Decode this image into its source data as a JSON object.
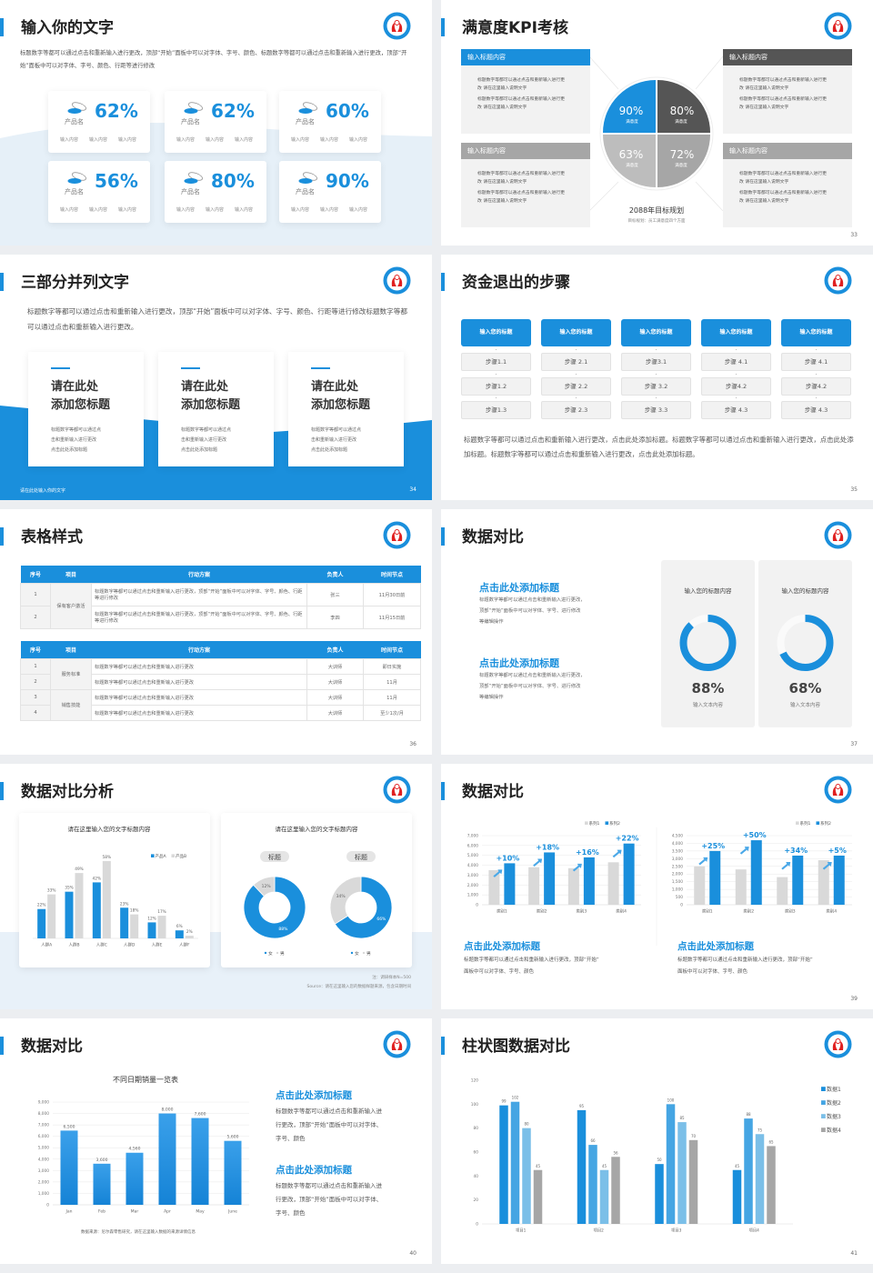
{
  "colors": {
    "accent": "#1a8fdc",
    "dark_gray": "#555555",
    "mid_gray": "#a6a6a6",
    "light_gray": "#d9d9d9",
    "panel": "#f2f2f2"
  },
  "slides": [
    {
      "page": "32",
      "title": "输入你的文字",
      "paragraph": "标题数字等都可以通过点击和重新输入进行更改，顶部“开始”面板中可以对字体、字号、颜色、标题数字等都可以通过点击和重新输入进行更改，顶部“开始”面板中可以对字体、字号、颜色、行距等进行修改",
      "cards": [
        {
          "icon": "pill-dish-icon",
          "value": "62%",
          "label": "产品名",
          "items": [
            "输入内容",
            "输入内容",
            "输入内容"
          ]
        },
        {
          "icon": "pill-dish-icon",
          "value": "62%",
          "label": "产品名",
          "items": [
            "输入内容",
            "输入内容",
            "输入内容"
          ]
        },
        {
          "icon": "pill-dish-icon",
          "value": "60%",
          "label": "产品名",
          "items": [
            "输入内容",
            "输入内容",
            "输入内容"
          ]
        },
        {
          "icon": "pill-dish-icon",
          "value": "56%",
          "label": "产品名",
          "items": [
            "输入内容",
            "输入内容",
            "输入内容"
          ]
        },
        {
          "icon": "pill-dish-icon",
          "value": "80%",
          "label": "产品名",
          "items": [
            "输入内容",
            "输入内容",
            "输入内容"
          ]
        },
        {
          "icon": "pill-dish-icon",
          "value": "90%",
          "label": "产品名",
          "items": [
            "输入内容",
            "输入内容",
            "输入内容"
          ]
        }
      ]
    },
    {
      "page": "33",
      "title": "满意度KPI考核",
      "boxes": [
        {
          "header": "输入标题内容",
          "color": "#1a8fdc",
          "bullets": [
            "标题数字等都可以通过点击和重新输入进行更改 请在这里输入说明文字",
            "标题数字等都可以通过点击和重新输入进行更改 请在这里输入说明文字"
          ]
        },
        {
          "header": "输入标题内容",
          "color": "#555555",
          "bullets": [
            "标题数字等都可以通过点击和重新输入进行更改 请在这里输入说明文字",
            "标题数字等都可以通过点击和重新输入进行更改 请在这里输入说明文字"
          ]
        },
        {
          "header": "输入标题内容",
          "color": "#a6a6a6",
          "bullets": [
            "标题数字等都可以通过点击和重新输入进行更改 请在这里输入说明文字",
            "标题数字等都可以通过点击和重新输入进行更改 请在这里输入说明文字"
          ]
        },
        {
          "header": "输入标题内容",
          "color": "#a6a6a6",
          "bullets": [
            "标题数字等都可以通过点击和重新输入进行更改 请在这里输入说明文字",
            "标题数字等都可以通过点击和重新输入进行更改 请在这里输入说明文字"
          ]
        }
      ],
      "quadrants": [
        {
          "value": "90%",
          "label": "满意度",
          "color": "#1a8fdc"
        },
        {
          "value": "80%",
          "label": "满意度",
          "color": "#555555"
        },
        {
          "value": "63%",
          "label": "满意度",
          "color": "#bdbdbd"
        },
        {
          "value": "72%",
          "label": "满意度",
          "color": "#a6a6a6"
        }
      ],
      "goal_title": "2088年目标规划",
      "goal_sub": "目标规划：员工满意度四个方面"
    },
    {
      "page": "34",
      "title": "三部分并列文字",
      "paragraph": "标题数字等都可以通过点击和重新输入进行更改，顶部“开始”面板中可以对字体、字号、颜色、行距等进行修改标题数字等都可以通过点击和重新输入进行更改。",
      "cards": [
        {
          "title1": "请在此处",
          "title2": "添加您标题",
          "text": [
            "标题数字等都可以通过点",
            "击和重新输入进行更改",
            "点击此处添加标题"
          ]
        },
        {
          "title1": "请在此处",
          "title2": "添加您标题",
          "text": [
            "标题数字等都可以通过点",
            "击和重新输入进行更改",
            "点击此处添加标题"
          ]
        },
        {
          "title1": "请在此处",
          "title2": "添加您标题",
          "text": [
            "标题数字等都可以通过点",
            "击和重新输入进行更改",
            "点击此处添加标题"
          ]
        }
      ],
      "footer": "请在此处输入你的文字"
    },
    {
      "page": "35",
      "title": "资金退出的步骤",
      "columns": [
        {
          "header": "输入您的标题",
          "steps": [
            "步骤1.1",
            "步骤1.2",
            "步骤1.3"
          ]
        },
        {
          "header": "输入您的标题",
          "steps": [
            "步骤 2.1",
            "步骤 2.2",
            "步骤 2.3"
          ]
        },
        {
          "header": "输入您的标题",
          "steps": [
            "步骤3.1",
            "步骤 3.2",
            "步骤 3.3"
          ]
        },
        {
          "header": "输入您的标题",
          "steps": [
            "步骤 4.1",
            "步骤4.2",
            "步骤 4.3"
          ]
        },
        {
          "header": "输入您的标题",
          "steps": [
            "步骤 4.1",
            "步骤4.2",
            "步骤 4.3"
          ]
        }
      ],
      "paragraph": "标题数字等都可以通过点击和重新输入进行更改，点击此处添加标题。标题数字等都可以通过点击和重新输入进行更改，点击此处添加标题。标题数字等都可以通过点击和重新输入进行更改，点击此处添加标题。"
    },
    {
      "page": "36",
      "title": "表格样式",
      "headers": [
        "序号",
        "项目",
        "行动方案",
        "负责人",
        "时间节点"
      ],
      "table1": {
        "group": "保有客户激活",
        "rows": [
          {
            "no": "1",
            "plan": "标题数字等都可以通过点击和重新输入进行更改，顶部“开始”面板中可以对字体、字号、颜色、行距等进行修改",
            "owner": "张三",
            "time": "11月30日前"
          },
          {
            "no": "2",
            "plan": "标题数字等都可以通过点击和重新输入进行更改，顶部“开始”面板中可以对字体、字号、颜色、行距等进行修改",
            "owner": "李四",
            "time": "11月15日前"
          }
        ]
      },
      "table2": {
        "groups": [
          "服务标准",
          "销售技能"
        ],
        "rows": [
          {
            "no": "1",
            "plan": "标题数字等都可以通过点击和重新输入进行更改",
            "owner": "大训师",
            "time": "即日实施"
          },
          {
            "no": "2",
            "plan": "标题数字等都可以通过点击和重新输入进行更改",
            "owner": "大训师",
            "time": "11月"
          },
          {
            "no": "3",
            "plan": "标题数字等都可以通过点击和重新输入进行更改",
            "owner": "大训师",
            "time": "11月"
          },
          {
            "no": "4",
            "plan": "标题数字等都可以通过点击和重新输入进行更改",
            "owner": "大训师",
            "time": "至少1次/月"
          }
        ]
      }
    },
    {
      "page": "37",
      "title": "数据对比",
      "blocks": [
        {
          "heading": "点击此处添加标题",
          "text": [
            "标题数字等都可以通过点击和重新输入进行更改，",
            "顶部“开始”面板中可以对字体、字号、进行修改",
            "等编辑操作"
          ]
        },
        {
          "heading": "点击此处添加标题",
          "text": [
            "标题数字等都可以通过点击和重新输入进行更改，",
            "顶部“开始”面板中可以对字体、字号、进行修改",
            "等编辑操作"
          ]
        }
      ],
      "gauges": [
        {
          "title": "输入您的标题内容",
          "value": "88%",
          "percent": 88,
          "caption": "输入文本内容"
        },
        {
          "title": "输入您的标题内容",
          "value": "68%",
          "percent": 68,
          "caption": "输入文本内容"
        }
      ]
    },
    {
      "page": "38",
      "title": "数据对比分析",
      "note": "注：调研样本N=500",
      "source": "Source：请在这里输入您的数据样题来源，包含日期时间"
    },
    {
      "page": "39",
      "title": "数据对比",
      "blocks": [
        {
          "heading": "点击此处添加标题",
          "text": [
            "标题数字等都可以通过点击和重新输入进行更改，顶部“开始”",
            "面板中可以对字体、字号、颜色"
          ]
        },
        {
          "heading": "点击此处添加标题",
          "text": [
            "标题数字等都可以通过点击和重新输入进行更改，顶部“开始”",
            "面板中可以对字体、字号、颜色"
          ]
        }
      ]
    },
    {
      "page": "40",
      "title": "数据对比",
      "blocks": [
        {
          "heading": "点击此处添加标题",
          "text": [
            "标题数字等都可以通过点击和重新输入进",
            "行更改，顶部“开始”面板中可以对字体、",
            "字号、颜色"
          ]
        },
        {
          "heading": "点击此处添加标题",
          "text": [
            "标题数字等都可以通过点击和重新输入进",
            "行更改，顶部“开始”面板中可以对字体、",
            "字号、颜色"
          ]
        }
      ]
    },
    {
      "page": "41",
      "title": "柱状图数据对比"
    }
  ],
  "chart_data": [
    {
      "type": "bar",
      "title": "请在这里输入您的文字标题内容",
      "categories": [
        "人群A",
        "人群B",
        "人群C",
        "人群D",
        "人群E",
        "人群F"
      ],
      "series": [
        {
          "name": "产品A",
          "values": [
            22,
            35,
            42,
            23,
            12,
            6
          ],
          "labels": [
            "22%",
            "35%",
            "42%",
            "23%",
            "12%",
            "6%"
          ]
        },
        {
          "name": "产品B",
          "values": [
            33,
            49,
            58,
            18,
            17,
            2
          ],
          "labels": [
            "33%",
            "49%",
            "58%",
            "18%",
            "17%",
            "2%"
          ]
        }
      ],
      "colors": [
        "#1a8fdc",
        "#d9d9d9"
      ],
      "ylim": [
        0,
        60
      ],
      "grid": false,
      "legend": "top-right"
    },
    {
      "type": "pie",
      "donut": true,
      "title": "请在这里输入您的文字标题内容",
      "subtitle": "标题",
      "categories": [
        "女",
        "男"
      ],
      "values": [
        88,
        12
      ],
      "labels": [
        "88%",
        "12%"
      ],
      "colors": [
        "#1a8fdc",
        "#d9d9d9"
      ],
      "legend": "bottom"
    },
    {
      "type": "pie",
      "donut": true,
      "subtitle": "标题",
      "categories": [
        "女",
        "男"
      ],
      "values": [
        66,
        34
      ],
      "labels": [
        "66%",
        "34%"
      ],
      "colors": [
        "#1a8fdc",
        "#d9d9d9"
      ],
      "legend": "bottom"
    },
    {
      "type": "bar",
      "categories": [
        "类别1",
        "类别2",
        "类别3",
        "类别4"
      ],
      "series": [
        {
          "name": "系列1",
          "values": [
            3500,
            3800,
            3700,
            4300
          ]
        },
        {
          "name": "系列2",
          "values": [
            4200,
            5300,
            4800,
            6200
          ]
        }
      ],
      "annotations": [
        "+10%",
        "+18%",
        "+16%",
        "+22%"
      ],
      "colors": [
        "#d9d9d9",
        "#1a8fdc"
      ],
      "ylim": [
        0,
        7000
      ],
      "yticks": [
        "0",
        "1,000",
        "2,000",
        "3,000",
        "4,000",
        "5,000",
        "6,000",
        "7,000"
      ],
      "grid": true,
      "legend": "top-right"
    },
    {
      "type": "bar",
      "categories": [
        "类别1",
        "类别2",
        "类别3",
        "类别4"
      ],
      "series": [
        {
          "name": "系列1",
          "values": [
            2500,
            2300,
            1800,
            2900
          ]
        },
        {
          "name": "系列2",
          "values": [
            3500,
            4200,
            3200,
            3200
          ]
        }
      ],
      "annotations": [
        "+25%",
        "+50%",
        "+34%",
        "+5%"
      ],
      "colors": [
        "#d9d9d9",
        "#1a8fdc"
      ],
      "ylim": [
        0,
        4500
      ],
      "yticks": [
        "0",
        "500",
        "1,000",
        "1,500",
        "2,000",
        "2,500",
        "3,000",
        "3,500",
        "4,000",
        "4,500"
      ],
      "grid": true,
      "legend": "top-right"
    },
    {
      "type": "bar",
      "title": "不同日期销量一览表",
      "categories": [
        "Jan",
        "Feb",
        "Mar",
        "Apr",
        "May",
        "June"
      ],
      "values": [
        6500,
        3600,
        4560,
        8000,
        7600,
        5600
      ],
      "labels": [
        "6,500",
        "3,600",
        "4,560",
        "8,000",
        "7,600",
        "5,600"
      ],
      "colors": [
        "#1a8fdc"
      ],
      "ylim": [
        0,
        9000
      ],
      "yticks": [
        "0",
        "1,000",
        "2,000",
        "3,000",
        "4,000",
        "5,000",
        "6,000",
        "7,000",
        "8,000",
        "9,000"
      ],
      "grid": true,
      "source": "数据来源：尼尔森零售研究，请在这里输入数据的来源详情信息"
    },
    {
      "type": "bar",
      "categories": [
        "项目1",
        "项目2",
        "项目3",
        "项目4"
      ],
      "series": [
        {
          "name": "数据1",
          "values": [
            99,
            95,
            50,
            45
          ]
        },
        {
          "name": "数据2",
          "values": [
            102,
            66,
            100,
            88
          ]
        },
        {
          "name": "数据3",
          "values": [
            80,
            45,
            85,
            75
          ]
        },
        {
          "name": "数据4",
          "values": [
            45,
            56,
            70,
            65
          ]
        }
      ],
      "colors": [
        "#1a8fdc",
        "#45a5e3",
        "#7bbfe8",
        "#a6a6a6"
      ],
      "ylim": [
        0,
        120
      ],
      "yticks": [
        "0",
        "20",
        "40",
        "60",
        "80",
        "100",
        "120"
      ],
      "grid": false,
      "legend": "right"
    }
  ]
}
